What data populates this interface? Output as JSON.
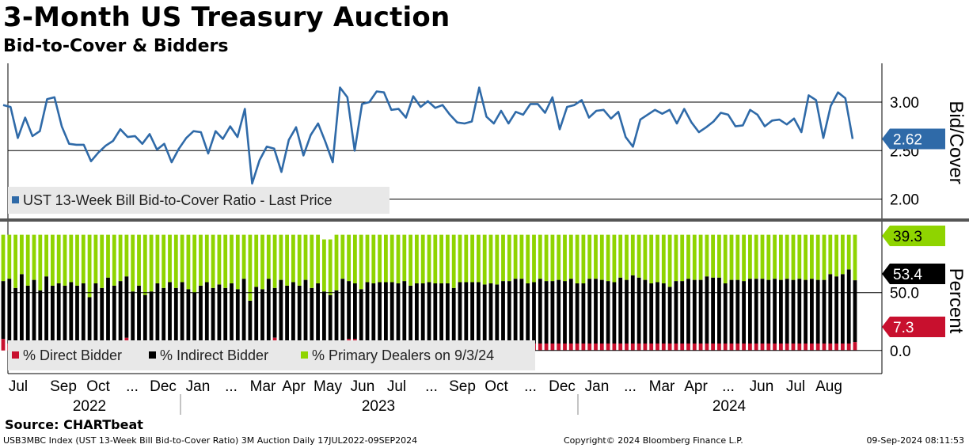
{
  "title": "3-Month US Treasury Auction",
  "subtitle": "Bid-to-Cover & Bidders",
  "source": "Source: CHARTbeat",
  "footer": {
    "left": "USB3MBC Index (UST 13-Week Bill Bid-to-Cover Ratio) 3M Auction  Daily 17JUL2022-09SEP2024",
    "middle": "Copyright© 2024 Bloomberg Finance L.P.",
    "right": "09-Sep-2024 08:11:53"
  },
  "colors": {
    "line": "#2f6aa8",
    "direct": "#c8102e",
    "indirect": "#000000",
    "primary": "#8fd400",
    "last_badge_top": "#2f6aa8",
    "last_badge_primary": "#8fd400",
    "last_badge_indirect": "#000000",
    "last_badge_direct": "#c8102e"
  },
  "chart_data": [
    {
      "type": "line",
      "ylabel": "Bid/Cover",
      "ylim": [
        1.8,
        3.4
      ],
      "yticks": [
        "2.00",
        "2.50",
        "3.00"
      ],
      "ytick_values": [
        2.0,
        2.5,
        3.0
      ],
      "last_value": "2.62",
      "legend": "UST 13-Week Bill Bid-to-Cover Ratio - Last Price",
      "series": [
        {
          "name": "UST 13-Week Bill Bid-to-Cover Ratio - Last Price",
          "values": [
            2.97,
            2.95,
            2.63,
            2.84,
            2.65,
            2.7,
            3.03,
            3.05,
            2.75,
            2.57,
            2.56,
            2.56,
            2.39,
            2.48,
            2.55,
            2.6,
            2.72,
            2.64,
            2.65,
            2.57,
            2.67,
            2.51,
            2.57,
            2.38,
            2.52,
            2.63,
            2.7,
            2.69,
            2.47,
            2.7,
            2.62,
            2.75,
            2.64,
            2.93,
            2.16,
            2.4,
            2.54,
            2.52,
            2.28,
            2.61,
            2.74,
            2.45,
            2.66,
            2.78,
            2.59,
            2.38,
            3.15,
            3.05,
            2.5,
            2.98,
            3.0,
            3.11,
            3.1,
            2.92,
            2.93,
            2.84,
            3.06,
            2.95,
            3.01,
            2.94,
            2.97,
            2.87,
            2.79,
            2.78,
            2.8,
            3.15,
            2.85,
            2.78,
            2.91,
            2.78,
            2.9,
            2.87,
            2.98,
            2.98,
            2.89,
            3.05,
            2.72,
            2.95,
            2.97,
            3.02,
            2.84,
            2.91,
            2.92,
            2.83,
            2.9,
            2.64,
            2.54,
            2.82,
            2.87,
            2.92,
            2.88,
            2.92,
            2.78,
            2.93,
            2.79,
            2.69,
            2.74,
            2.8,
            2.89,
            2.87,
            2.75,
            2.76,
            2.92,
            2.87,
            2.75,
            2.81,
            2.82,
            2.77,
            2.83,
            2.69,
            3.07,
            3.02,
            2.63,
            2.96,
            3.1,
            3.04,
            2.62
          ]
        }
      ]
    },
    {
      "type": "bar",
      "stacked": true,
      "ylabel": "Percent",
      "ylim": [
        -20,
        110
      ],
      "yticks": [
        "0.0",
        "50.0"
      ],
      "ytick_values": [
        0,
        50
      ],
      "last_values": {
        "primary": "39.3",
        "indirect": "53.4",
        "direct": "7.3"
      },
      "legend": [
        "% Direct Bidder",
        "% Indirect Bidder",
        "% Primary Dealers on 9/3/24"
      ],
      "series": [
        {
          "name": "% Direct Bidder",
          "values": [
            10,
            6,
            6,
            6,
            6,
            6,
            6,
            6,
            6,
            6,
            6,
            6,
            6,
            6,
            6,
            6,
            6,
            6,
            6,
            6,
            11,
            7,
            7,
            6,
            6,
            6,
            6,
            6,
            6,
            6,
            6,
            6,
            6,
            6,
            6,
            6,
            6,
            6,
            6,
            6,
            6,
            6,
            6,
            6,
            11,
            6,
            6,
            6,
            6,
            6,
            6,
            6,
            6,
            6,
            6,
            6,
            10,
            10,
            6,
            6,
            6,
            6,
            6,
            6,
            6,
            6,
            6,
            6,
            6,
            6,
            6,
            6,
            6,
            6,
            6,
            6,
            6,
            6,
            6,
            6,
            6,
            6,
            6,
            6,
            6,
            6,
            6,
            6,
            6,
            6,
            6,
            6,
            6,
            6,
            6,
            6,
            6,
            6,
            6,
            6,
            6,
            6,
            6,
            6,
            6,
            6,
            6,
            6,
            6,
            6,
            6,
            6,
            6,
            6,
            6,
            6,
            6,
            6,
            6,
            6,
            6,
            6,
            6,
            6,
            6,
            6,
            6,
            6,
            6,
            6,
            6,
            6,
            6,
            6,
            6,
            6,
            6,
            6,
            7.3
          ]
        },
        {
          "name": "% Indirect Bidder",
          "values": [
            50,
            56,
            48,
            60,
            50,
            55,
            46,
            58,
            50,
            52,
            50,
            53,
            50,
            52,
            40,
            52,
            48,
            57,
            50,
            54,
            53,
            44,
            49,
            42,
            45,
            52,
            48,
            53,
            48,
            53,
            47,
            44,
            50,
            53,
            48,
            51,
            48,
            52,
            47,
            56,
            37,
            49,
            47,
            56,
            43,
            55,
            50,
            53,
            50,
            55,
            48,
            52,
            45,
            42,
            46,
            56,
            50,
            48,
            47,
            53,
            52,
            53,
            53,
            53,
            52,
            54,
            50,
            52,
            52,
            53,
            52,
            52,
            52,
            48,
            53,
            53,
            53,
            53,
            51,
            52,
            51,
            54,
            54,
            56,
            56,
            52,
            53,
            56,
            54,
            54,
            55,
            54,
            56,
            52,
            52,
            56,
            56,
            55,
            54,
            53,
            57,
            55,
            59,
            57,
            55,
            52,
            53,
            52,
            49,
            54,
            54,
            56,
            55,
            55,
            58,
            57,
            57,
            52,
            55,
            55,
            54,
            56,
            56,
            56,
            55,
            56,
            55,
            56,
            55,
            56,
            55,
            56,
            55,
            55,
            60,
            58,
            60,
            64,
            53.4
          ]
        },
        {
          "name": "% Primary Dealers on 9/3/24",
          "values": [
            40,
            38,
            46,
            34,
            44,
            39,
            48,
            36,
            44,
            42,
            44,
            41,
            44,
            42,
            54,
            42,
            46,
            37,
            44,
            40,
            36,
            49,
            44,
            52,
            49,
            42,
            46,
            41,
            46,
            41,
            47,
            50,
            44,
            41,
            46,
            43,
            46,
            42,
            47,
            38,
            57,
            45,
            47,
            38,
            46,
            39,
            44,
            41,
            44,
            39,
            46,
            42,
            45,
            48,
            48,
            38,
            40,
            42,
            47,
            41,
            42,
            41,
            41,
            41,
            42,
            40,
            44,
            42,
            42,
            41,
            42,
            42,
            42,
            46,
            41,
            41,
            41,
            41,
            43,
            42,
            43,
            40,
            40,
            38,
            38,
            42,
            41,
            38,
            40,
            40,
            39,
            40,
            38,
            42,
            42,
            38,
            38,
            39,
            40,
            41,
            37,
            39,
            35,
            37,
            39,
            42,
            41,
            42,
            45,
            40,
            40,
            38,
            39,
            39,
            36,
            37,
            37,
            42,
            39,
            39,
            40,
            38,
            38,
            38,
            39,
            38,
            39,
            38,
            39,
            38,
            39,
            38,
            39,
            39,
            34,
            36,
            34,
            30,
            39.3
          ]
        }
      ]
    }
  ],
  "x_axis": {
    "months": [
      {
        "label": "Jul",
        "x": 23
      },
      {
        "label": "Sep",
        "x": 80
      },
      {
        "label": "Oct",
        "x": 124
      },
      {
        "label": "...",
        "x": 167
      },
      {
        "label": "Dec",
        "x": 206
      },
      {
        "label": "Jan",
        "x": 250
      },
      {
        "label": "...",
        "x": 292
      },
      {
        "label": "Mar",
        "x": 332
      },
      {
        "label": "Apr",
        "x": 371
      },
      {
        "label": "May",
        "x": 414
      },
      {
        "label": "Jun",
        "x": 458
      },
      {
        "label": "Jul",
        "x": 501
      },
      {
        "label": "...",
        "x": 545
      },
      {
        "label": "Sep",
        "x": 584
      },
      {
        "label": "Oct",
        "x": 627
      },
      {
        "label": "...",
        "x": 670
      },
      {
        "label": "Dec",
        "x": 710
      },
      {
        "label": "Jan",
        "x": 754
      },
      {
        "label": "...",
        "x": 796
      },
      {
        "label": "Mar",
        "x": 836
      },
      {
        "label": "Apr",
        "x": 879
      },
      {
        "label": "...",
        "x": 920
      },
      {
        "label": "Jun",
        "x": 962
      },
      {
        "label": "Jul",
        "x": 1005
      },
      {
        "label": "Aug",
        "x": 1047
      }
    ],
    "years": [
      {
        "label": "2022",
        "x": 113
      },
      {
        "label": "2023",
        "x": 478
      },
      {
        "label": "2024",
        "x": 921
      }
    ]
  }
}
